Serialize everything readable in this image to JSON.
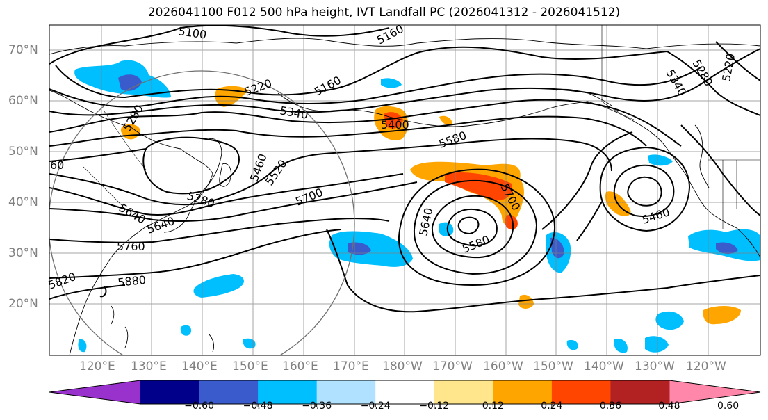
{
  "title": "2026041100 F012 500 hPa height, IVT Landfall PC (2026041312 - 2026041512)",
  "lat_labels": [
    "70°N",
    "60°N",
    "50°N",
    "40°N",
    "30°N",
    "20°N"
  ],
  "lon_labels": [
    "120°E",
    "130°E",
    "140°E",
    "150°E",
    "160°E",
    "170°E",
    "180°W",
    "170°W",
    "160°W",
    "150°W",
    "140°W",
    "130°W",
    "120°W"
  ],
  "contour_labels": [
    "5100",
    "5160",
    "5160",
    "5220",
    "5280",
    "5340",
    "5400",
    "5580",
    "5460",
    "5520",
    "5280",
    "5640",
    "5700",
    "5700",
    "5760",
    "5820",
    "5880",
    "5640",
    "5580",
    "5460",
    "5340",
    "5280",
    "5220",
    "5640",
    "60"
  ],
  "colorbar": {
    "ticks": [
      "−0.60",
      "−0.48",
      "−0.36",
      "−0.24",
      "−0.12",
      "0.12",
      "0.24",
      "0.36",
      "0.48",
      "0.60"
    ],
    "colors": [
      "#9932cc",
      "#00008b",
      "#3a5bcc",
      "#00bfff",
      "#b0e2ff",
      "#ffffff",
      "#ffe68c",
      "#ffa500",
      "#ff4500",
      "#b22222",
      "#ff88aa"
    ]
  },
  "colors": {
    "grid": "#808080",
    "contour": "#000000",
    "label": "#808080"
  }
}
